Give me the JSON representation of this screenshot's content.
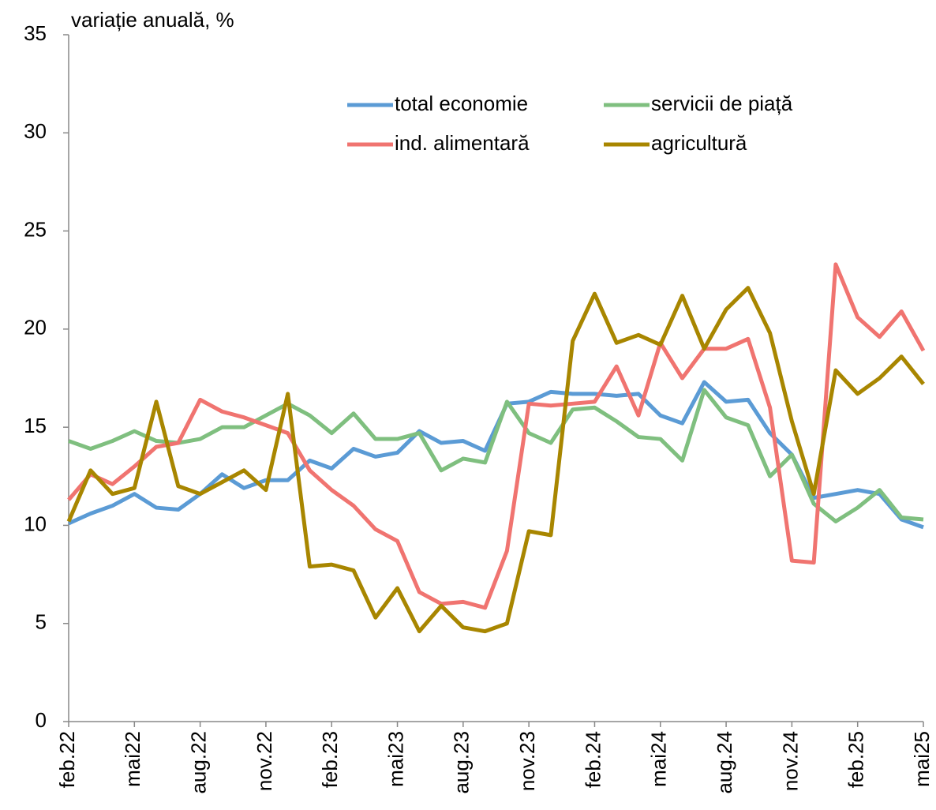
{
  "chart_data": {
    "type": "line",
    "ylabel": "variație anuală, %",
    "categories": [
      "feb.22",
      null,
      null,
      "mai22",
      null,
      null,
      "aug.22",
      null,
      null,
      "nov.22",
      null,
      null,
      "feb.23",
      null,
      null,
      "mai23",
      null,
      null,
      "aug.23",
      null,
      null,
      "nov.23",
      null,
      null,
      "feb.24",
      null,
      null,
      "mai24",
      null,
      null,
      "aug.24",
      null,
      null,
      "nov.24",
      null,
      null,
      "feb.25",
      null,
      null,
      "mai25"
    ],
    "series": [
      {
        "name": "total economie",
        "color": "#5b9bd5",
        "values": [
          10.1,
          10.6,
          11.0,
          11.6,
          10.9,
          10.8,
          11.6,
          12.6,
          11.9,
          12.3,
          12.3,
          13.3,
          12.9,
          13.9,
          13.5,
          13.7,
          14.8,
          14.2,
          14.3,
          13.8,
          16.2,
          16.3,
          16.8,
          16.7,
          16.7,
          16.6,
          16.7,
          15.6,
          15.2,
          17.3,
          16.3,
          16.4,
          14.7,
          13.6,
          11.4,
          11.6,
          11.8,
          11.6,
          10.3,
          9.9
        ]
      },
      {
        "name": "servicii de piață",
        "color": "#7fbf7f",
        "values": [
          14.3,
          13.9,
          14.3,
          14.8,
          14.3,
          14.2,
          14.4,
          15.0,
          15.0,
          15.6,
          16.2,
          15.6,
          14.7,
          15.7,
          14.4,
          14.4,
          14.7,
          12.8,
          13.4,
          13.2,
          16.3,
          14.7,
          14.2,
          15.9,
          16.0,
          15.3,
          14.5,
          14.4,
          13.3,
          16.9,
          15.5,
          15.1,
          12.5,
          13.6,
          11.1,
          10.2,
          10.9,
          11.8,
          10.4,
          10.3
        ]
      },
      {
        "name": "ind. alimentară",
        "color": "#f07470",
        "values": [
          11.3,
          12.6,
          12.1,
          13.0,
          14.0,
          14.2,
          16.4,
          15.8,
          15.5,
          15.1,
          14.7,
          12.8,
          11.8,
          11.0,
          9.8,
          9.2,
          6.6,
          6.0,
          6.1,
          5.8,
          8.7,
          16.2,
          16.1,
          16.2,
          16.3,
          18.1,
          15.6,
          19.3,
          17.5,
          19.0,
          19.0,
          19.5,
          16.0,
          8.2,
          8.1,
          23.3,
          20.6,
          19.6,
          20.9,
          18.9
        ]
      },
      {
        "name": "agricultură",
        "color": "#a88600",
        "values": [
          10.2,
          12.8,
          11.6,
          11.9,
          16.3,
          12.0,
          11.6,
          12.2,
          12.8,
          11.8,
          16.7,
          7.9,
          8.0,
          7.7,
          5.3,
          6.8,
          4.6,
          5.9,
          4.8,
          4.6,
          5.0,
          9.7,
          9.5,
          19.4,
          21.8,
          19.3,
          19.7,
          19.2,
          21.7,
          19.0,
          21.0,
          22.1,
          19.8,
          15.3,
          11.6,
          17.9,
          16.7,
          17.5,
          18.6,
          17.2
        ]
      }
    ],
    "ylim": [
      0,
      35
    ],
    "yticks": [
      0,
      5,
      10,
      15,
      20,
      25,
      30,
      35
    ],
    "grid": false
  }
}
